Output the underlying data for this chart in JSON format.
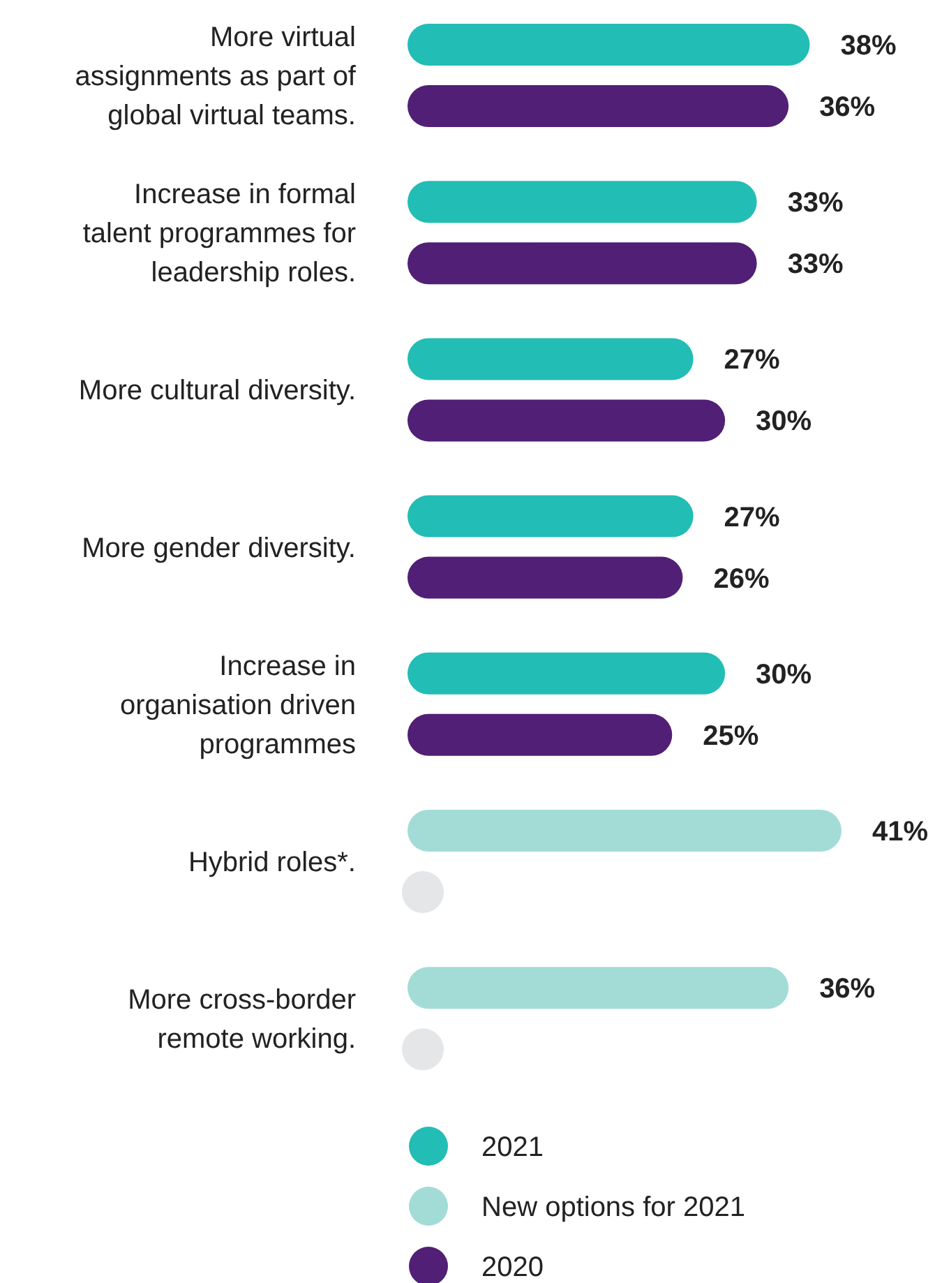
{
  "chart_data": {
    "type": "bar",
    "orientation": "horizontal",
    "categories": [
      "More virtual assignments as part of global virtual teams.",
      "Increase in formal talent programmes for leadership roles.",
      "More cultural diversity.",
      "More gender diversity.",
      "Increase in organisation driven programmes",
      "Hybrid roles*.",
      "More cross-border remote working."
    ],
    "series": [
      {
        "name": "2021",
        "color": "#22bdb5",
        "values": [
          38,
          33,
          27,
          27,
          30,
          null,
          null
        ],
        "value_labels": [
          "38%",
          "33%",
          "27%",
          "27%",
          "30%",
          null,
          null
        ]
      },
      {
        "name": "New options for 2021",
        "color": "#a3dcd7",
        "values": [
          null,
          null,
          null,
          null,
          null,
          41,
          36
        ],
        "value_labels": [
          null,
          null,
          null,
          null,
          null,
          "41%",
          "36%"
        ]
      },
      {
        "name": "2020",
        "color": "#511f75",
        "values": [
          36,
          33,
          30,
          26,
          25,
          null,
          null
        ],
        "value_labels": [
          "36%",
          "33%",
          "30%",
          "26%",
          "25%",
          null,
          null
        ]
      }
    ],
    "legend": "bottom",
    "tick_labels": "y"
  }
}
